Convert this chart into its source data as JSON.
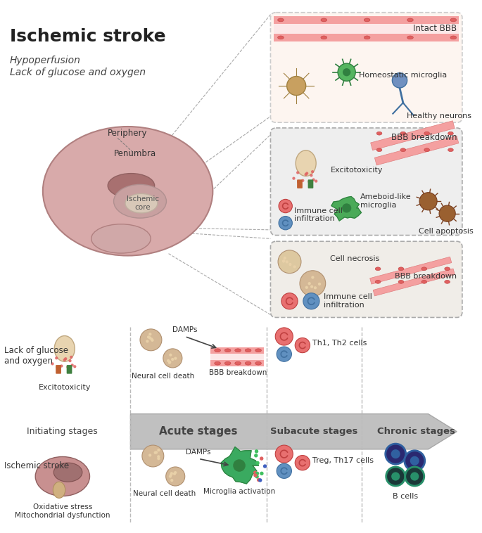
{
  "title": "Ischemic stroke",
  "bg_color": "#ffffff",
  "labels": {
    "subtitle_line1": "Hypoperfusion",
    "subtitle_line2": "Lack of glucose and oxygen",
    "periphery": "Periphery",
    "penumbra": "Penumbra",
    "ischemic_core": "Ischemic\ncore",
    "intact_bbb": "Intact BBB",
    "homeostatic_microglia": "Homeostatic microglia",
    "healthy_neurons": "Healthy neurons",
    "bbb_breakdown1": "BBB breakdown",
    "excitotoxicity1": "Excitotoxicity",
    "ameboid_microglia": "Ameboid-like\nmicroglia",
    "immune_cell1": "Immune cell\ninfiltration",
    "cell_apoptosis": "Cell apoptosis",
    "cell_necrosis": "Cell necrosis",
    "bbb_breakdown2": "BBB breakdown",
    "immune_cell2": "Immune cell\ninfiltration",
    "lack_glucose": "Lack of glucose\nand oxygen",
    "excitotoxicity2": "Excitotoxicity",
    "initiating": "Initiating stages",
    "acute": "Acute stages",
    "subacute": "Subacute stages",
    "chronic": "Chronic stages",
    "neural_death1": "Neural cell death",
    "bbb_breakdown3": "BBB breakdown",
    "th1_th2": "Th1, Th2 cells",
    "ischemic_stroke": "Ischemic stroke",
    "oxidative": "Oxidative stress\nMitochondrial dysfunction",
    "neural_death2": "Neural cell death",
    "microglia_act": "Microglia activation",
    "treg_th17": "Treg, Th17 cells",
    "b_cells": "B cells",
    "damps1": "DAMPs",
    "damps2": "DAMPs"
  },
  "colors": {
    "arrow": "#888888",
    "dashed": "#999999",
    "brain": "#d4a5a5",
    "brain_inner": "#b08080",
    "core": "#d0c0b0",
    "vessel": "#f4a0a0",
    "cell_tan": "#d4b896",
    "cell_pink": "#e87070",
    "cell_blue": "#6090c0",
    "cell_green": "#50b060",
    "cell_brown": "#9a6030"
  }
}
